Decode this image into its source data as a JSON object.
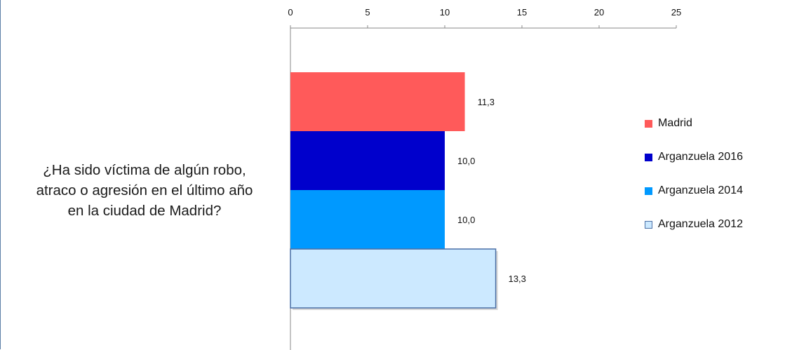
{
  "question": {
    "lines": [
      "¿Ha sido víctima de algún robo,",
      "atraco o agresión en el último año",
      "en la ciudad de Madrid?"
    ]
  },
  "chart_data": {
    "type": "bar",
    "orientation": "horizontal",
    "xlim": [
      0,
      25
    ],
    "x_ticks": [
      "0",
      "5",
      "10",
      "15",
      "20",
      "25"
    ],
    "x_tick_values": [
      0,
      5,
      10,
      15,
      20,
      25
    ],
    "axis_position": "top",
    "grid": false,
    "legend_position": "right",
    "category": "¿Ha sido víctima de algún robo, atraco o agresión en el último año en la ciudad de Madrid?",
    "series": [
      {
        "name": "Madrid",
        "value": 11.3,
        "label": "11,3",
        "color": "#ff5a5a",
        "border": "#ff5a5a"
      },
      {
        "name": "Arganzuela 2016",
        "value": 10.0,
        "label": "10,0",
        "color": "#0000cc",
        "border": "#0000cc"
      },
      {
        "name": "Arganzuela 2014",
        "value": 10.0,
        "label": "10,0",
        "color": "#0099ff",
        "border": "#0099ff"
      },
      {
        "name": "Arganzuela  2012",
        "value": 13.3,
        "label": "13,3",
        "color": "#cce9ff",
        "border": "#4a6fa5"
      }
    ]
  }
}
